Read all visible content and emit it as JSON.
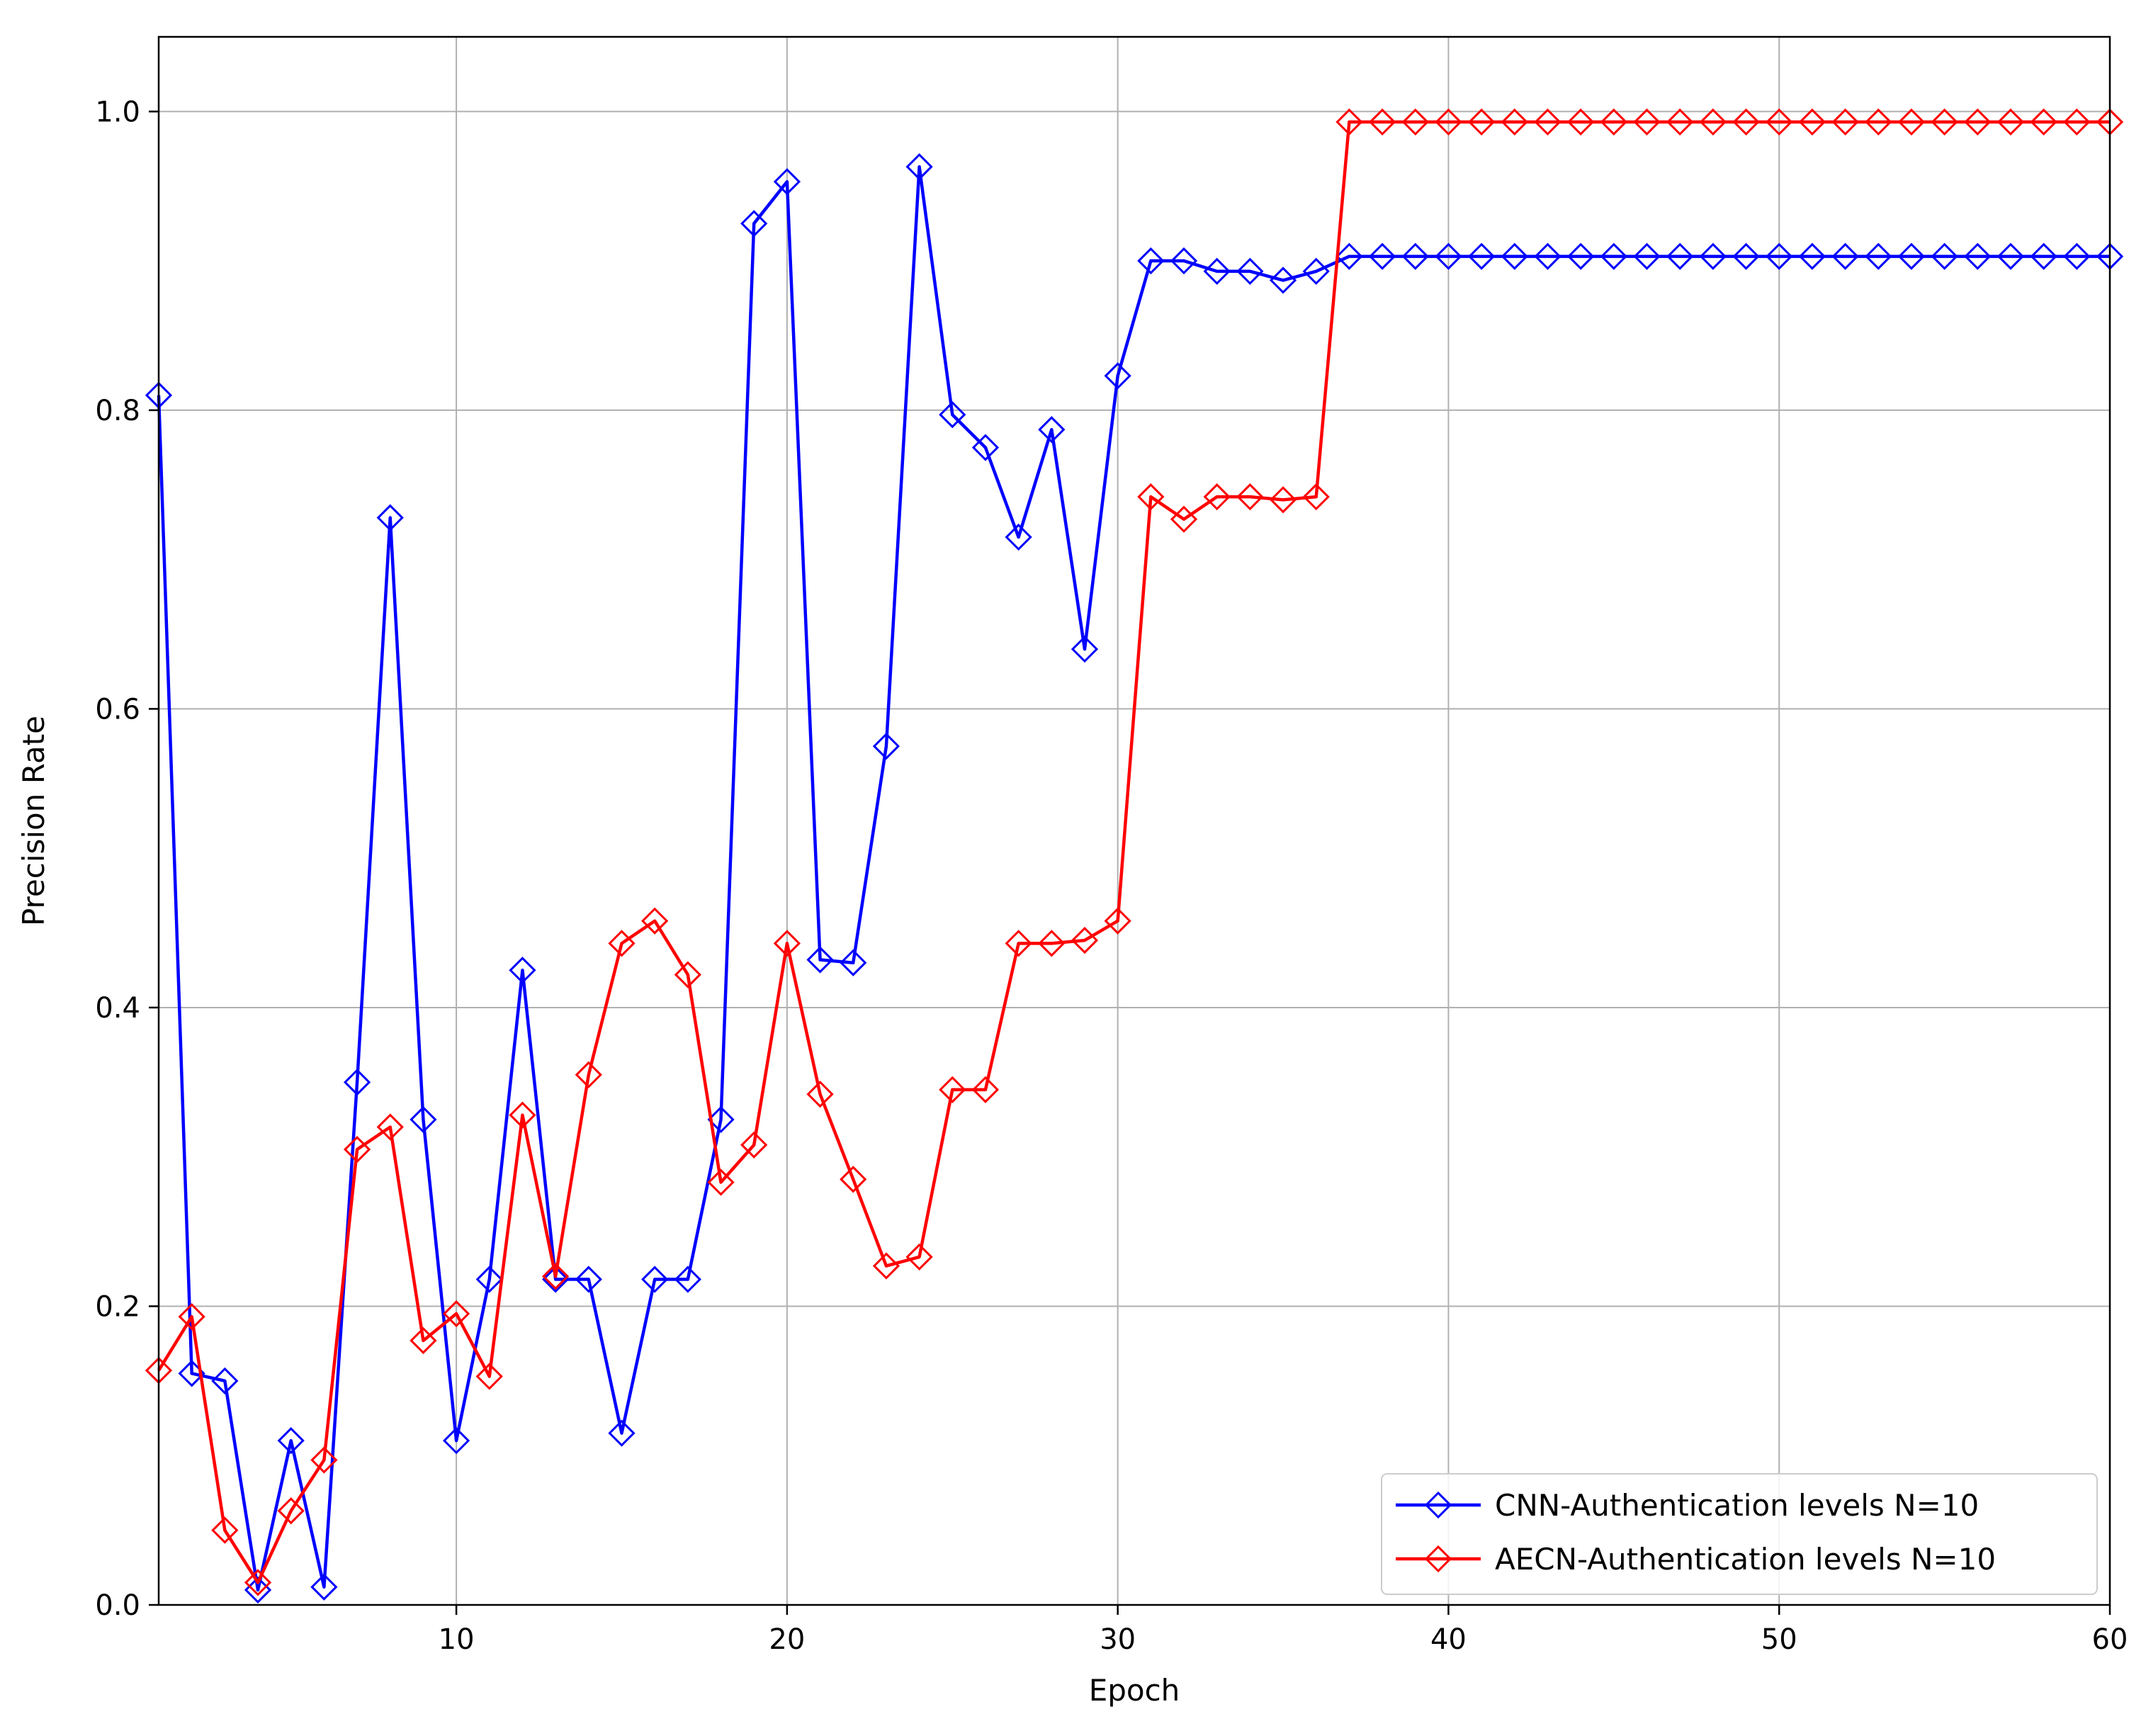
{
  "chart_data": {
    "type": "line",
    "title": "",
    "xlabel": "Epoch",
    "ylabel": "Precision Rate",
    "xlim": [
      1,
      60
    ],
    "ylim": [
      0.0,
      1.05
    ],
    "xticks": [
      "10",
      "20",
      "30",
      "40",
      "50",
      "60"
    ],
    "yticks": [
      "0.0",
      "0.2",
      "0.4",
      "0.6",
      "0.8",
      "1.0"
    ],
    "grid": true,
    "legend_position": "bottom-right",
    "marker": "diamond-open",
    "x": [
      1,
      2,
      3,
      4,
      5,
      6,
      7,
      8,
      9,
      10,
      11,
      12,
      13,
      14,
      15,
      16,
      17,
      18,
      19,
      20,
      21,
      22,
      23,
      24,
      25,
      26,
      27,
      28,
      29,
      30,
      31,
      32,
      33,
      34,
      35,
      36,
      37,
      38,
      39,
      40,
      41,
      42,
      43,
      44,
      45,
      46,
      47,
      48,
      49,
      50,
      51,
      52,
      53,
      54,
      55,
      56,
      57,
      58,
      59,
      60
    ],
    "series": [
      {
        "name": "CNN-Authentication levels N=10",
        "color": "#0000ff",
        "values": [
          0.81,
          0.155,
          0.15,
          0.01,
          0.11,
          0.012,
          0.35,
          0.728,
          0.325,
          0.11,
          0.218,
          0.425,
          0.218,
          0.218,
          0.115,
          0.218,
          0.218,
          0.325,
          0.925,
          0.953,
          0.432,
          0.43,
          0.575,
          0.963,
          0.797,
          0.775,
          0.715,
          0.787,
          0.64,
          0.823,
          0.9,
          0.9,
          0.893,
          0.893,
          0.887,
          0.893,
          0.903,
          0.903,
          0.903,
          0.903,
          0.903,
          0.903,
          0.903,
          0.903,
          0.903,
          0.903,
          0.903,
          0.903,
          0.903,
          0.903,
          0.903,
          0.903,
          0.903,
          0.903,
          0.903,
          0.903,
          0.903,
          0.903,
          0.903,
          0.903
        ]
      },
      {
        "name": "AECN-Authentication levels N=10",
        "color": "#ff0000",
        "values": [
          0.157,
          0.193,
          0.05,
          0.015,
          0.063,
          0.097,
          0.305,
          0.32,
          0.177,
          0.195,
          0.153,
          0.328,
          0.22,
          0.355,
          0.443,
          0.458,
          0.422,
          0.283,
          0.308,
          0.443,
          0.342,
          0.285,
          0.227,
          0.233,
          0.345,
          0.345,
          0.443,
          0.443,
          0.445,
          0.458,
          0.742,
          0.727,
          0.742,
          0.742,
          0.74,
          0.742,
          0.993,
          0.993,
          0.993,
          0.993,
          0.993,
          0.993,
          0.993,
          0.993,
          0.993,
          0.993,
          0.993,
          0.993,
          0.993,
          0.993,
          0.993,
          0.993,
          0.993,
          0.993,
          0.993,
          0.993,
          0.993,
          0.993,
          0.993,
          0.993
        ]
      }
    ]
  }
}
